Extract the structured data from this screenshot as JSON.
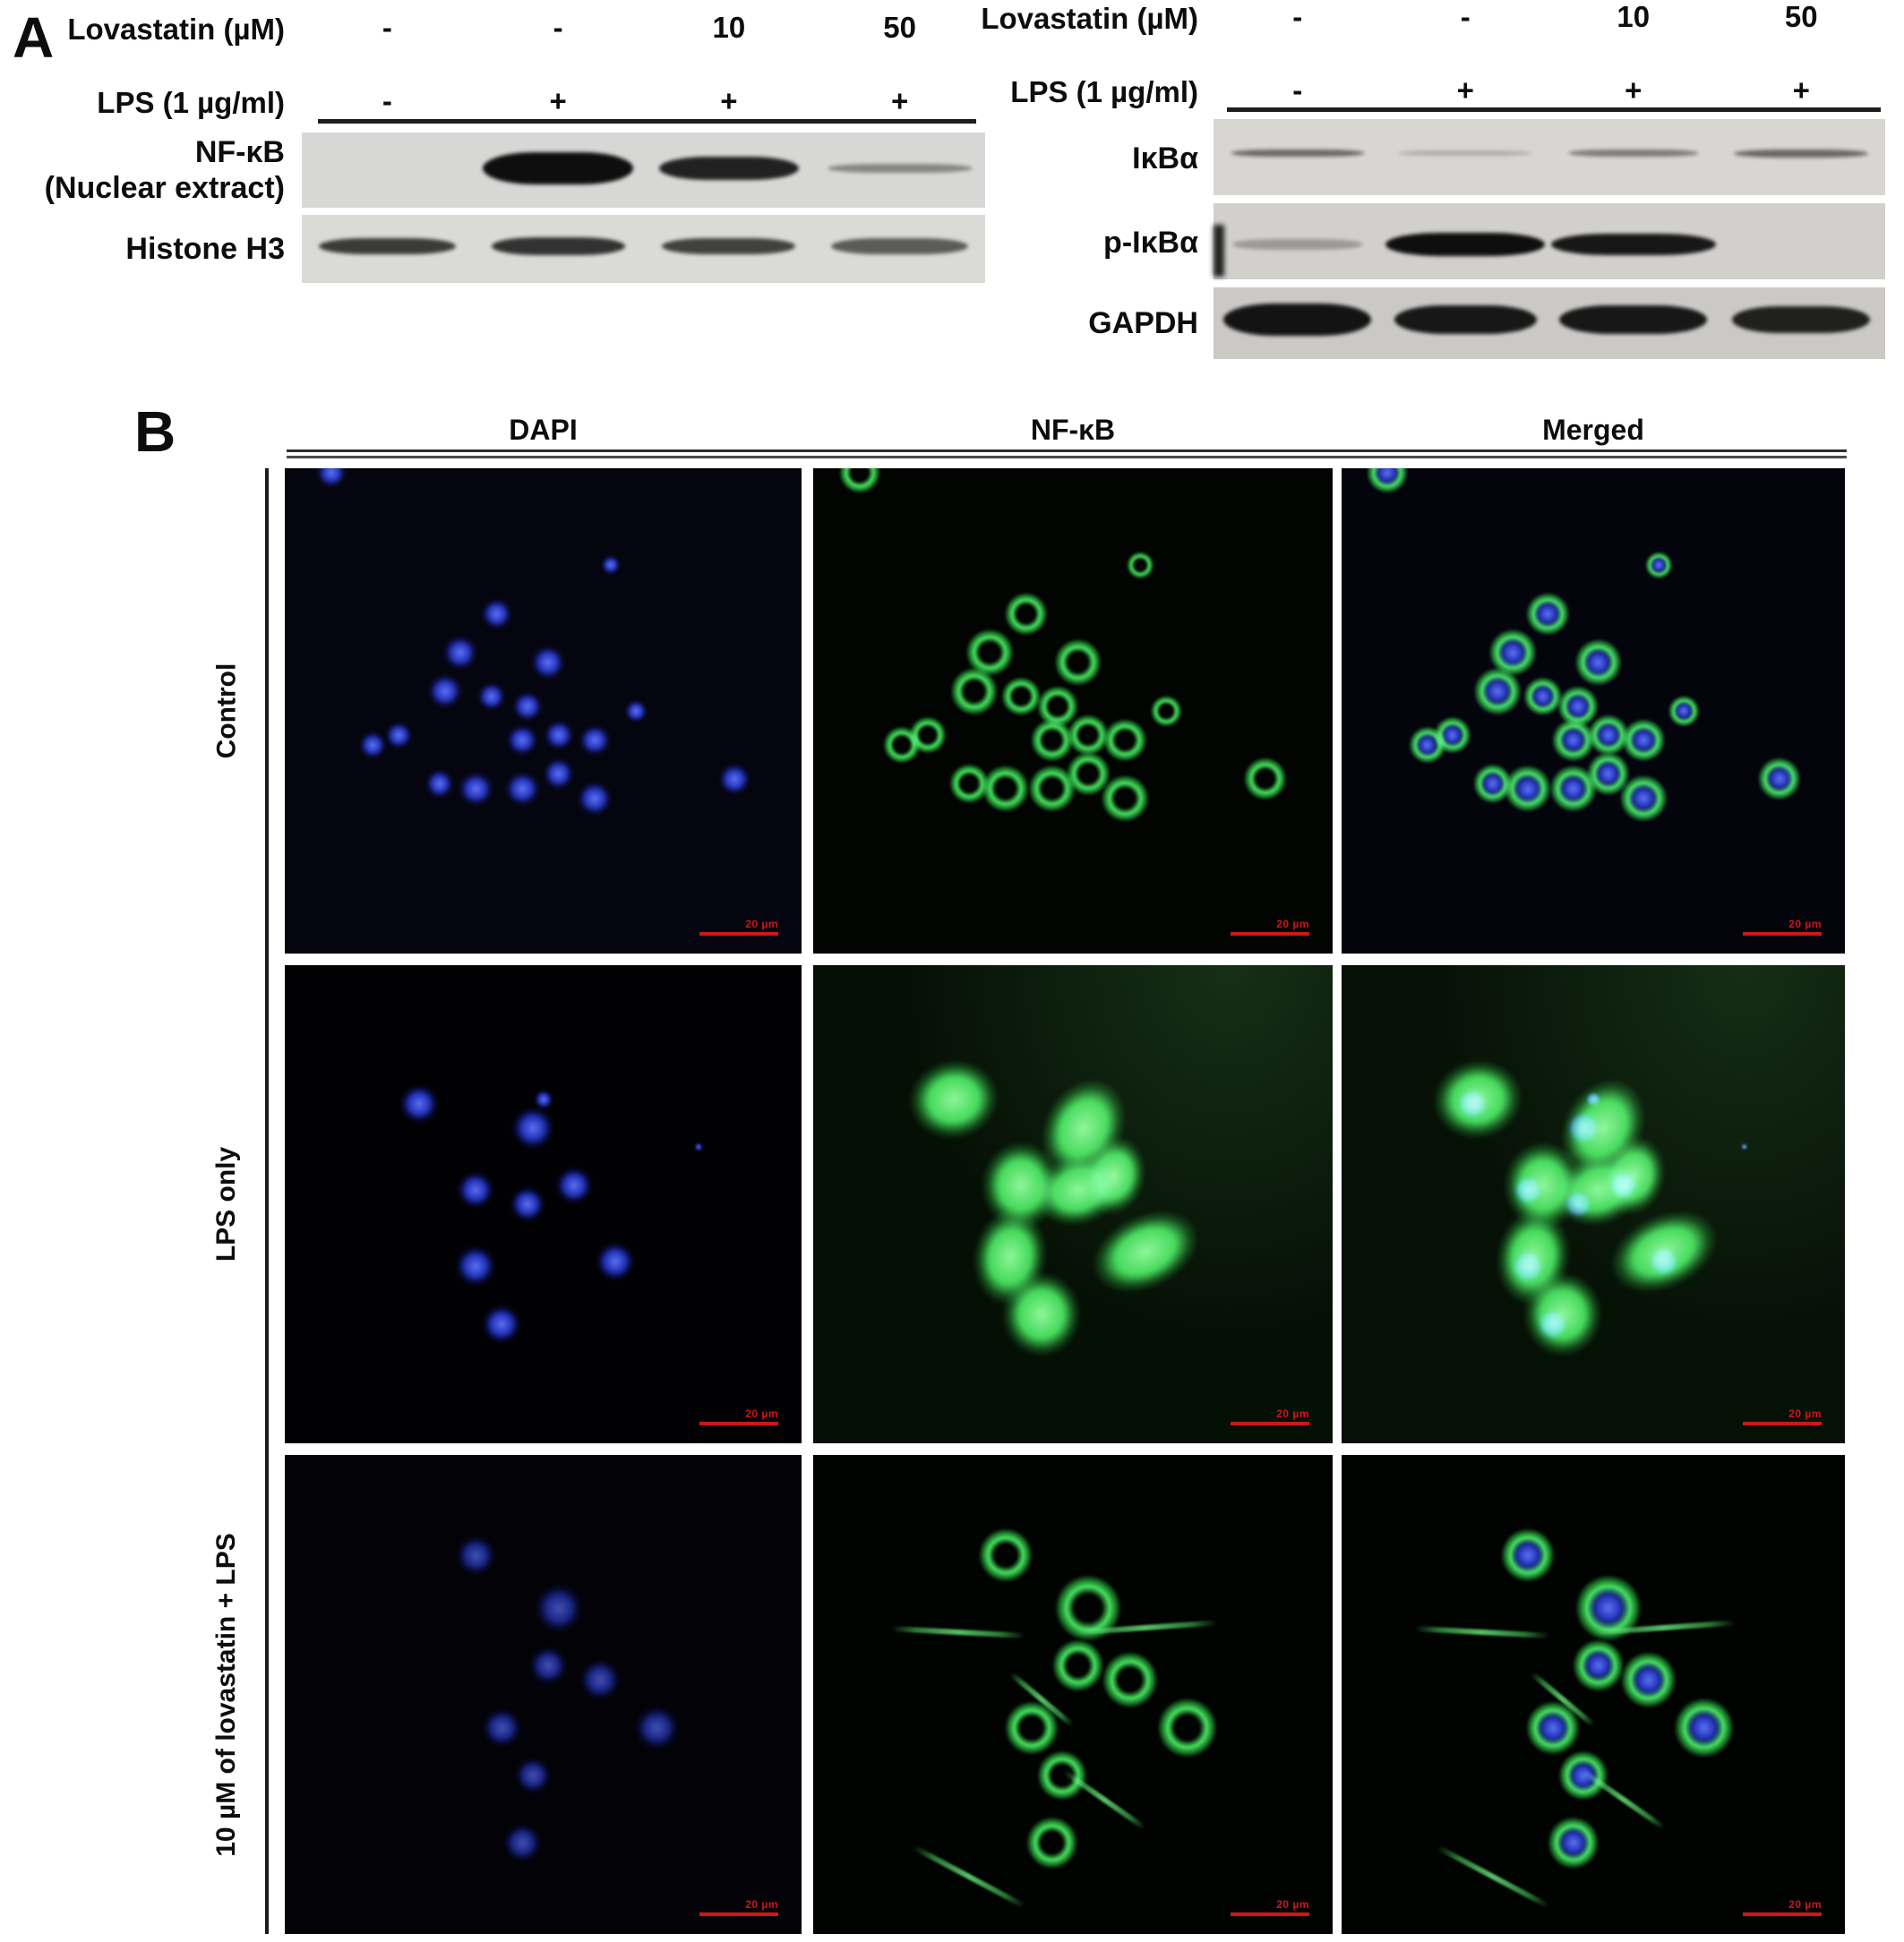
{
  "panel_a": {
    "label": "A",
    "groups": [
      {
        "key": "nuclear-fraction",
        "condition_rows": [
          {
            "label": "Lovastatin (µM)",
            "values": [
              "-",
              "-",
              "10",
              "50"
            ]
          },
          {
            "label": "LPS (1 µg/ml)",
            "values": [
              "-",
              "+",
              "+",
              "+"
            ]
          }
        ],
        "blots": [
          {
            "key": "nfkb-nuclear-extract",
            "label_lines": [
              "NF-κB",
              "(Nuclear extract)"
            ],
            "bands": [
              {
                "lane": 1,
                "o": 1,
                "w": 0.88,
                "h": 36
              },
              {
                "lane": 2,
                "o": 0.9,
                "w": 0.82,
                "h": 26
              },
              {
                "lane": 3,
                "o": 0.4,
                "w": 0.85,
                "h": 10
              }
            ]
          },
          {
            "key": "histone-h3",
            "label_lines": [
              "Histone H3"
            ],
            "bands": [
              {
                "lane": 0,
                "o": 0.78,
                "w": 0.8,
                "h": 18
              },
              {
                "lane": 1,
                "o": 0.82,
                "w": 0.78,
                "h": 20
              },
              {
                "lane": 2,
                "o": 0.75,
                "w": 0.78,
                "h": 18
              },
              {
                "lane": 3,
                "o": 0.62,
                "w": 0.8,
                "h": 18
              }
            ]
          }
        ]
      },
      {
        "key": "cytosolic-fraction",
        "condition_rows": [
          {
            "label": "Lovastatin (µM)",
            "values": [
              "-",
              "-",
              "10",
              "50"
            ]
          },
          {
            "label": "LPS (1 µg/ml)",
            "values": [
              "-",
              "+",
              "+",
              "+"
            ]
          }
        ],
        "blots": [
          {
            "key": "ikba",
            "label_lines": [
              "IκBα"
            ],
            "bands": [
              {
                "lane": 0,
                "o": 0.55,
                "w": 0.8,
                "h": 8
              },
              {
                "lane": 1,
                "o": 0.2,
                "w": 0.8,
                "h": 6
              },
              {
                "lane": 2,
                "o": 0.45,
                "w": 0.78,
                "h": 8
              },
              {
                "lane": 3,
                "o": 0.55,
                "w": 0.8,
                "h": 9
              }
            ]
          },
          {
            "key": "p-ikba",
            "label_lines": [
              "p-IκBα"
            ],
            "bands": [
              {
                "lane": 0,
                "o": 0.28,
                "w": 0.78,
                "h": 12
              },
              {
                "lane": 1,
                "o": 1,
                "w": 0.95,
                "h": 26
              },
              {
                "lane": 2,
                "o": 0.95,
                "w": 0.98,
                "h": 24
              }
            ]
          },
          {
            "key": "gapdh",
            "label_lines": [
              "GAPDH"
            ],
            "bands": [
              {
                "lane": 0,
                "o": 0.97,
                "w": 0.88,
                "h": 36
              },
              {
                "lane": 1,
                "o": 0.95,
                "w": 0.85,
                "h": 32
              },
              {
                "lane": 2,
                "o": 0.95,
                "w": 0.88,
                "h": 32
              },
              {
                "lane": 3,
                "o": 0.9,
                "w": 0.82,
                "h": 30
              }
            ]
          }
        ]
      }
    ]
  },
  "panel_b": {
    "label": "B",
    "column_headers": [
      "DAPI",
      "NF-κB",
      "Merged"
    ],
    "row_labels": [
      "Control",
      "LPS only",
      "10 µM of lovastatin + LPS"
    ],
    "scale_bar_label": "20 µm"
  },
  "colors": {
    "dapi_blue": "#2a3fe0",
    "nfkb_green": "#35e855",
    "scale_bar_red": "#d01616"
  },
  "microscopy": {
    "rows": [
      {
        "key": "control",
        "pattern": "membrane-ring",
        "cells": [
          {
            "x": 9,
            "y": 1,
            "s": 40
          },
          {
            "x": 63,
            "y": 20,
            "s": 26
          },
          {
            "x": 41,
            "y": 30,
            "s": 42
          },
          {
            "x": 34,
            "y": 38,
            "s": 46
          },
          {
            "x": 31,
            "y": 46,
            "s": 46
          },
          {
            "x": 40,
            "y": 47,
            "s": 38
          },
          {
            "x": 51,
            "y": 40,
            "s": 46
          },
          {
            "x": 47,
            "y": 49,
            "s": 40
          },
          {
            "x": 46,
            "y": 56,
            "s": 42
          },
          {
            "x": 53,
            "y": 55,
            "s": 40
          },
          {
            "x": 60,
            "y": 56,
            "s": 42
          },
          {
            "x": 68,
            "y": 50,
            "s": 30
          },
          {
            "x": 17,
            "y": 57,
            "s": 36
          },
          {
            "x": 22,
            "y": 55,
            "s": 36
          },
          {
            "x": 30,
            "y": 65,
            "s": 38
          },
          {
            "x": 37,
            "y": 66,
            "s": 46
          },
          {
            "x": 46,
            "y": 66,
            "s": 46
          },
          {
            "x": 53,
            "y": 63,
            "s": 42
          },
          {
            "x": 60,
            "y": 68,
            "s": 46
          },
          {
            "x": 87,
            "y": 64,
            "s": 42
          }
        ]
      },
      {
        "key": "lps-only",
        "pattern": "nuclear-filled",
        "cells": [
          {
            "x": 26,
            "y": 29,
            "s": 44
          },
          {
            "x": 48,
            "y": 34,
            "s": 48
          },
          {
            "x": 50,
            "y": 28,
            "s": 22
          },
          {
            "x": 37,
            "y": 47,
            "s": 42
          },
          {
            "x": 47,
            "y": 50,
            "s": 40
          },
          {
            "x": 56,
            "y": 46,
            "s": 42
          },
          {
            "x": 37,
            "y": 63,
            "s": 46
          },
          {
            "x": 64,
            "y": 62,
            "s": 44
          },
          {
            "x": 42,
            "y": 75,
            "s": 44
          },
          {
            "x": 80,
            "y": 38,
            "s": 10
          }
        ],
        "blobs": [
          {
            "x": 27,
            "y": 28,
            "w": 100,
            "h": 88,
            "rot": -10
          },
          {
            "x": 52,
            "y": 34,
            "w": 88,
            "h": 115,
            "rot": 28
          },
          {
            "x": 40,
            "y": 46,
            "w": 88,
            "h": 98,
            "rot": 0
          },
          {
            "x": 51,
            "y": 47,
            "w": 100,
            "h": 78,
            "rot": -18
          },
          {
            "x": 58,
            "y": 44,
            "w": 70,
            "h": 88,
            "rot": 12
          },
          {
            "x": 38,
            "y": 61,
            "w": 82,
            "h": 108,
            "rot": 8
          },
          {
            "x": 64,
            "y": 60,
            "w": 125,
            "h": 82,
            "rot": -25
          },
          {
            "x": 44,
            "y": 73,
            "w": 88,
            "h": 94,
            "rot": 0
          }
        ]
      },
      {
        "key": "lovastatin-lps",
        "pattern": "membrane-ring",
        "cells": [
          {
            "x": 37,
            "y": 21,
            "s": 52
          },
          {
            "x": 53,
            "y": 32,
            "s": 64
          },
          {
            "x": 51,
            "y": 44,
            "s": 50
          },
          {
            "x": 61,
            "y": 47,
            "s": 54
          },
          {
            "x": 42,
            "y": 57,
            "s": 52
          },
          {
            "x": 72,
            "y": 57,
            "s": 58
          },
          {
            "x": 48,
            "y": 67,
            "s": 48
          },
          {
            "x": 46,
            "y": 81,
            "s": 50
          }
        ],
        "streaks": [
          {
            "x": 28,
            "y": 37,
            "len": 150,
            "rot": 3
          },
          {
            "x": 64,
            "y": 36,
            "len": 160,
            "rot": -4
          },
          {
            "x": 44,
            "y": 51,
            "len": 90,
            "rot": 40
          },
          {
            "x": 56,
            "y": 72,
            "len": 110,
            "rot": 35
          },
          {
            "x": 30,
            "y": 88,
            "len": 140,
            "rot": 28
          }
        ]
      }
    ]
  }
}
